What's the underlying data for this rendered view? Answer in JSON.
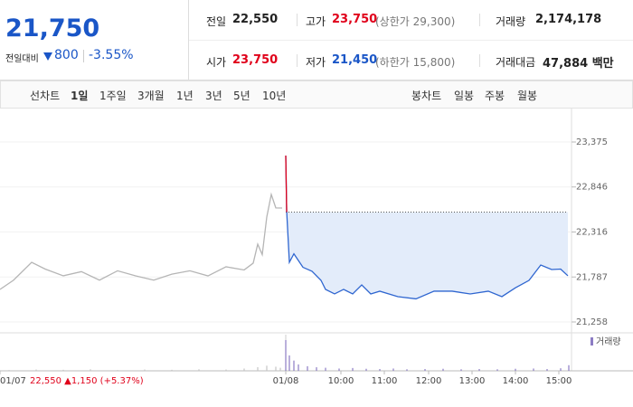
{
  "header": {
    "price": "21,750",
    "change_label": "전일대비",
    "change": "800",
    "change_pct": "-3.55%",
    "stats": [
      {
        "label": "전일",
        "value": "22,550"
      },
      {
        "label": "고가",
        "value": "23,750",
        "note": "(상한가 29,300)"
      },
      {
        "label": "거래량",
        "value": "2,174,178"
      },
      {
        "label": "시가",
        "value": "23,750"
      },
      {
        "label": "저가",
        "value": "21,450",
        "note": "(하한가 15,800)"
      },
      {
        "label": "거래대금",
        "value": "47,884 백만"
      }
    ]
  },
  "tabs": {
    "line": {
      "label": "선차트",
      "items": [
        "1일",
        "1주일",
        "3개월",
        "1년",
        "3년",
        "5년",
        "10년"
      ]
    },
    "candle": {
      "label": "봉차트",
      "items": [
        "일봉",
        "주봉",
        "월봉"
      ]
    }
  },
  "chart_data": {
    "type": "line",
    "xlim": [
      0,
      126.4
    ],
    "xticks": [
      {
        "value": 0,
        "label": "01/07"
      },
      {
        "value": 63.2,
        "label": "01/08"
      },
      {
        "value": 75.4,
        "label": "10:00"
      },
      {
        "value": 85,
        "label": "11:00"
      },
      {
        "value": 94.8,
        "label": "12:00"
      },
      {
        "value": 104.4,
        "label": "13:00"
      },
      {
        "value": 114,
        "label": "14:00"
      },
      {
        "value": 123.6,
        "label": "15:00"
      }
    ],
    "prev_day_note": "22,550 ▲1,150 (+5.37%)",
    "ylim": [
      21162,
      23524
    ],
    "yticks": [
      {
        "value": 21258,
        "label": "21,258"
      },
      {
        "value": 21787,
        "label": "21,787"
      },
      {
        "value": 22316,
        "label": "22,316"
      },
      {
        "value": 22846,
        "label": "22,846"
      },
      {
        "value": 23375,
        "label": "23,375"
      }
    ],
    "reference": 22550,
    "up_color": "#e0001a",
    "area_color": "#e3ecfa",
    "series": [
      {
        "color": "#b5b5b5",
        "x": [
          0,
          3,
          7,
          10,
          14,
          18,
          22,
          26,
          30,
          34,
          38,
          42,
          46,
          50,
          54,
          56,
          57,
          58,
          59,
          60,
          61,
          62.4
        ],
        "values": [
          21641,
          21750,
          21960,
          21880,
          21801,
          21850,
          21750,
          21860,
          21800,
          21750,
          21820,
          21860,
          21800,
          21907,
          21870,
          21950,
          22173,
          22050,
          22492,
          22758,
          22600,
          22598
        ]
      },
      {
        "color": "#2f66d0",
        "x": [
          63.2,
          63.4,
          64,
          65,
          67,
          69,
          71,
          72,
          74,
          76,
          78,
          80,
          82,
          84,
          88,
          92,
          96,
          100,
          104,
          108,
          111,
          114,
          117,
          119.6,
          122,
          124,
          125.6
        ],
        "values": [
          23215,
          22566,
          21960,
          22060,
          21901,
          21854,
          21747,
          21641,
          21588,
          21641,
          21588,
          21694,
          21588,
          21620,
          21556,
          21530,
          21620,
          21620,
          21588,
          21620,
          21556,
          21660,
          21747,
          21928,
          21875,
          21880,
          21801
        ]
      }
    ],
    "volume": {
      "label": "거래량",
      "series": [
        {
          "color": "#c4c4c4",
          "x": [
            2,
            8,
            14,
            20,
            26,
            32,
            38,
            44,
            50,
            54,
            57,
            59,
            61,
            62
          ],
          "values": [
            3000,
            5000,
            4000,
            6000,
            3000,
            5000,
            4000,
            6000,
            5000,
            9000,
            14000,
            20000,
            16000,
            12000
          ]
        },
        {
          "color": "#8c7cc4",
          "x": [
            63.2,
            64,
            65,
            66,
            68,
            70,
            72,
            75,
            78,
            81,
            84,
            87,
            90,
            94,
            98,
            102,
            106,
            110,
            114,
            118,
            121,
            124,
            125.8
          ],
          "values": [
            120000,
            60000,
            40000,
            25000,
            18000,
            14000,
            12000,
            9000,
            11000,
            8000,
            7000,
            9000,
            6000,
            7000,
            8000,
            6000,
            7000,
            6000,
            8000,
            9000,
            7000,
            10000,
            22000
          ]
        }
      ]
    }
  }
}
